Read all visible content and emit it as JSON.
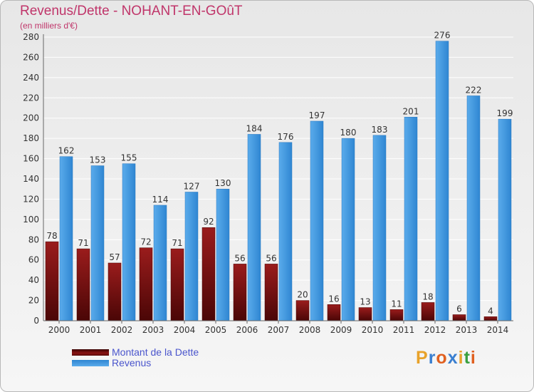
{
  "chart_data": {
    "type": "bar",
    "title": "Revenus/Dette - NOHANT-EN-GOûT",
    "subtitle": "(en milliers d'€)",
    "categories": [
      "2000",
      "2001",
      "2002",
      "2003",
      "2004",
      "2005",
      "2006",
      "2007",
      "2008",
      "2009",
      "2010",
      "2011",
      "2012",
      "2013",
      "2014"
    ],
    "series": [
      {
        "name": "Montant de la Dette",
        "color": "#8a1414",
        "values": [
          78,
          71,
          57,
          72,
          71,
          92,
          56,
          56,
          20,
          16,
          13,
          11,
          18,
          6,
          4
        ]
      },
      {
        "name": "Revenus",
        "color": "#3d95dd",
        "values": [
          162,
          153,
          155,
          114,
          127,
          130,
          184,
          176,
          197,
          180,
          183,
          201,
          276,
          222,
          199
        ]
      }
    ],
    "yticks": [
      0,
      20,
      40,
      60,
      80,
      100,
      120,
      140,
      160,
      180,
      200,
      220,
      240,
      260,
      280
    ],
    "ylim": [
      0,
      280
    ],
    "grid": true,
    "legend_position": "bottom-left"
  },
  "colors": {
    "title": "#c0356a",
    "legend_text": "#4a55cc"
  },
  "logo": {
    "text": "Proxiti",
    "colors": [
      "#e8a22a",
      "#3a7fd0",
      "#e06020",
      "#3a7fd0",
      "#e8a22a",
      "#3aa040",
      "#e06020"
    ]
  }
}
